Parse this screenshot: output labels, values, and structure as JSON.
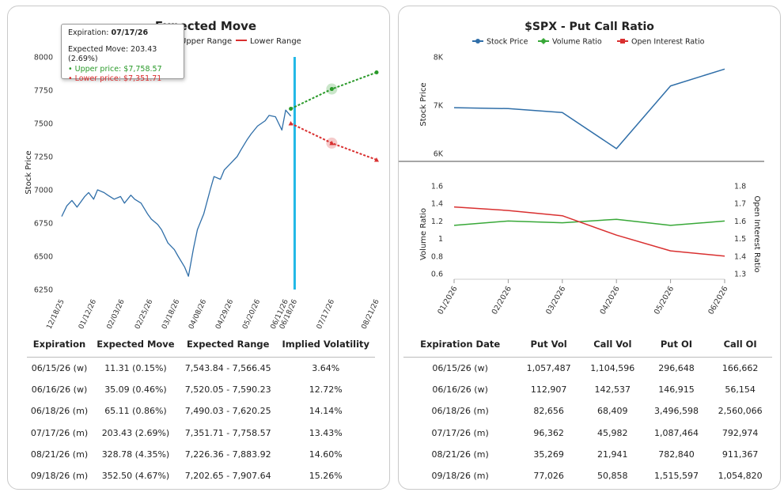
{
  "colors": {
    "stock": "#2f6ea8",
    "upper": "#2a9a2a",
    "lower": "#d93030",
    "vline": "#22b8e6",
    "volume": "#38a838",
    "oi": "#d93030"
  },
  "left": {
    "title": "Expected Move",
    "legend": {
      "upper": "Upper Range",
      "lower": "Lower Range"
    },
    "ylabel": "Stock Price",
    "tooltip": {
      "expiration_label": "Expiration: ",
      "expiration": "07/17/26",
      "move": "Expected Move: 203.43 (2.69%)",
      "upper": "• Upper price: $7,758.57",
      "lower": "• Lower price: $7,351.71"
    },
    "table": {
      "headers": [
        "Expiration",
        "Expected Move",
        "Expected Range",
        "Implied Volatility"
      ],
      "rows": [
        [
          "06/15/26 (w)",
          "11.31 (0.15%)",
          "7,543.84 - 7,566.45",
          "3.64%"
        ],
        [
          "06/16/26 (w)",
          "35.09 (0.46%)",
          "7,520.05 - 7,590.23",
          "12.72%"
        ],
        [
          "06/18/26 (m)",
          "65.11 (0.86%)",
          "7,490.03 - 7,620.25",
          "14.14%"
        ],
        [
          "07/17/26 (m)",
          "203.43 (2.69%)",
          "7,351.71 - 7,758.57",
          "13.43%"
        ],
        [
          "08/21/26 (m)",
          "328.78 (4.35%)",
          "7,226.36 - 7,883.92",
          "14.60%"
        ],
        [
          "09/18/26 (m)",
          "352.50 (4.67%)",
          "7,202.65 - 7,907.64",
          "15.26%"
        ]
      ]
    }
  },
  "right": {
    "title": "$SPX - Put Call Ratio",
    "legend": [
      "Stock Price",
      "Volume Ratio",
      "Open Interest Ratio"
    ],
    "ylabel_top": "Stock Price",
    "ylabel_vol": "Volume Ratio",
    "ylabel_oi": "Open Interest Ratio",
    "table": {
      "headers": [
        "Expiration Date",
        "Put Vol",
        "Call Vol",
        "Put OI",
        "Call OI"
      ],
      "rows": [
        [
          "06/15/26 (w)",
          "1,057,487",
          "1,104,596",
          "296,648",
          "166,662"
        ],
        [
          "06/16/26 (w)",
          "112,907",
          "142,537",
          "146,915",
          "56,154"
        ],
        [
          "06/18/26 (m)",
          "82,656",
          "68,409",
          "3,496,598",
          "2,560,066"
        ],
        [
          "07/17/26 (m)",
          "96,362",
          "45,982",
          "1,087,464",
          "792,974"
        ],
        [
          "08/21/26 (m)",
          "35,269",
          "21,941",
          "782,840",
          "911,367"
        ],
        [
          "09/18/26 (m)",
          "77,026",
          "50,858",
          "1,515,597",
          "1,054,820"
        ]
      ]
    }
  },
  "chart_data": [
    {
      "type": "line",
      "title": "Expected Move",
      "ylabel": "Stock Price",
      "ylim": [
        6250,
        8000
      ],
      "yticks": [
        6250,
        6500,
        6750,
        7000,
        7250,
        7500,
        7750,
        8000
      ],
      "xticks": [
        "12/18/25",
        "01/12/26",
        "02/03/26",
        "02/25/26",
        "03/18/26",
        "04/08/26",
        "04/29/26",
        "05/20/26",
        "06/11/26",
        "06/18/26",
        "07/17/26",
        "08/21/26"
      ],
      "series": [
        {
          "name": "Stock Price",
          "x": [
            "12/18/25",
            "12/22/25",
            "12/26/25",
            "12/30/25",
            "01/05/26",
            "01/08/26",
            "01/12/26",
            "01/15/26",
            "01/20/26",
            "01/23/26",
            "01/28/26",
            "02/02/26",
            "02/05/26",
            "02/10/26",
            "02/13/26",
            "02/18/26",
            "02/23/26",
            "02/26/26",
            "03/03/26",
            "03/06/26",
            "03/11/26",
            "03/16/26",
            "03/19/26",
            "03/24/26",
            "03/27/26",
            "03/31/26",
            "04/03/26",
            "04/08/26",
            "04/13/26",
            "04/16/26",
            "04/21/26",
            "04/24/26",
            "04/29/26",
            "05/04/26",
            "05/07/26",
            "05/12/26",
            "05/15/26",
            "05/20/26",
            "05/26/26",
            "05/29/26",
            "06/03/26",
            "06/08/26",
            "06/11/26",
            "06/15/26"
          ],
          "y": [
            6800,
            6880,
            6920,
            6870,
            6950,
            6980,
            6930,
            7000,
            6980,
            6960,
            6930,
            6950,
            6900,
            6960,
            6930,
            6900,
            6820,
            6780,
            6740,
            6700,
            6600,
            6550,
            6500,
            6420,
            6350,
            6560,
            6700,
            6820,
            7000,
            7100,
            7080,
            7150,
            7200,
            7250,
            7300,
            7380,
            7420,
            7480,
            7520,
            7560,
            7550,
            7450,
            7600,
            7555
          ]
        },
        {
          "name": "Upper Range",
          "x": [
            "06/15/26",
            "07/17/26",
            "08/21/26"
          ],
          "y": [
            7610,
            7758.57,
            7883.92
          ]
        },
        {
          "name": "Lower Range",
          "x": [
            "06/15/26",
            "07/17/26",
            "08/21/26"
          ],
          "y": [
            7500,
            7351.71,
            7226.36
          ]
        }
      ],
      "vline": "06/18/26"
    },
    {
      "type": "line",
      "title": "$SPX - Put Call Ratio",
      "ylabel": "Stock Price",
      "ylim": [
        6000,
        8000
      ],
      "yticks_labels": [
        "6K",
        "7K",
        "8K"
      ],
      "x": [
        "01/2026",
        "02/2026",
        "03/2026",
        "04/2026",
        "05/2026",
        "06/2026"
      ],
      "series": [
        {
          "name": "Stock Price",
          "values": [
            6950,
            6930,
            6850,
            6100,
            7400,
            7750
          ]
        }
      ]
    },
    {
      "type": "line",
      "ylabel": "Volume Ratio",
      "y2label": "Open Interest Ratio",
      "ylim": [
        0.6,
        1.6
      ],
      "y2lim": [
        1.3,
        1.8
      ],
      "x": [
        "01/2026",
        "02/2026",
        "03/2026",
        "04/2026",
        "05/2026",
        "06/2026"
      ],
      "series": [
        {
          "name": "Volume Ratio",
          "values": [
            1.15,
            1.2,
            1.18,
            1.22,
            1.15,
            1.2
          ]
        },
        {
          "name": "Open Interest Ratio",
          "values": [
            1.68,
            1.66,
            1.63,
            1.52,
            1.43,
            1.4
          ]
        }
      ]
    }
  ]
}
